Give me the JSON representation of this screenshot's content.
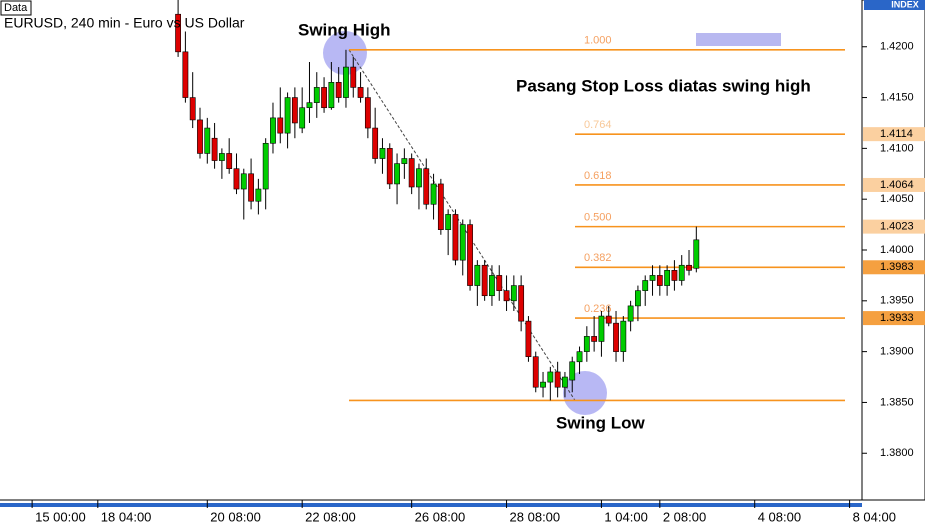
{
  "chart_data": {
    "type": "candlestick",
    "title": "EURUSD, 240 min - Euro vs US Dollar",
    "data_label": "Data",
    "axis_title": "INDEX",
    "up_color": "#00cc00",
    "down_color": "#dd0000",
    "ylim": [
      1.3754,
      1.4246
    ],
    "yticks": [
      {
        "value": 1.42,
        "label": "1.4200"
      },
      {
        "value": 1.415,
        "label": "1.4150"
      },
      {
        "value": 1.41,
        "label": "1.4100"
      },
      {
        "value": 1.405,
        "label": "1.4050"
      },
      {
        "value": 1.4,
        "label": "1.4000"
      },
      {
        "value": 1.395,
        "label": "1.3950"
      },
      {
        "value": 1.39,
        "label": "1.3900"
      },
      {
        "value": 1.385,
        "label": "1.3850"
      },
      {
        "value": 1.38,
        "label": "1.3800"
      }
    ],
    "xlim": [
      -24.4,
      93.7
    ],
    "xticks": [
      {
        "value": -20,
        "label": "15 00:00"
      },
      {
        "value": -11,
        "label": "18 04:00"
      },
      {
        "value": 4,
        "label": "20 08:00"
      },
      {
        "value": 17,
        "label": "22 08:00"
      },
      {
        "value": 32,
        "label": "26 08:00"
      },
      {
        "value": 45,
        "label": "28 08:00"
      },
      {
        "value": 58,
        "label": "1 04:00"
      },
      {
        "value": 66,
        "label": "2 08:00"
      },
      {
        "value": 79,
        "label": "4 08:00"
      },
      {
        "value": 92,
        "label": "8 04:00"
      }
    ],
    "open": [
      1.4232,
      1.4195,
      1.415,
      1.4128,
      1.4095,
      1.411,
      1.4088,
      1.4095,
      1.408,
      1.406,
      1.4075,
      1.4048,
      1.406,
      1.4105,
      1.413,
      1.4115,
      1.415,
      1.412,
      1.414,
      1.4145,
      1.416,
      1.414,
      1.4165,
      1.415,
      1.418,
      1.416,
      1.415,
      1.412,
      1.409,
      1.41,
      1.4065,
      1.4085,
      1.409,
      1.4062,
      1.408,
      1.4045,
      1.4065,
      1.402,
      1.4035,
      1.399,
      1.4025,
      1.3965,
      1.3985,
      1.3955,
      1.3975,
      1.396,
      1.395,
      1.3965,
      1.393,
      1.3895,
      1.3865,
      1.387,
      1.388,
      1.3865,
      1.3872,
      1.389,
      1.39,
      1.3915,
      1.391,
      1.3935,
      1.3928,
      1.39,
      1.393,
      1.3945,
      1.396,
      1.397,
      1.3975,
      1.3965,
      1.398,
      1.397,
      1.3985,
      1.3982
    ],
    "high": [
      1.4246,
      1.4215,
      1.4175,
      1.414,
      1.413,
      1.4125,
      1.41,
      1.411,
      1.4095,
      1.408,
      1.409,
      1.407,
      1.411,
      1.4145,
      1.416,
      1.4155,
      1.416,
      1.416,
      1.4185,
      1.4175,
      1.417,
      1.4185,
      1.418,
      1.4197,
      1.419,
      1.4175,
      1.416,
      1.414,
      1.411,
      1.4105,
      1.4095,
      1.41,
      1.4095,
      1.4085,
      1.409,
      1.4075,
      1.407,
      1.404,
      1.404,
      1.403,
      1.403,
      1.399,
      1.399,
      1.3985,
      1.3985,
      1.3975,
      1.3975,
      1.3975,
      1.3935,
      1.39,
      1.388,
      1.3885,
      1.389,
      1.388,
      1.3895,
      1.3905,
      1.3925,
      1.3935,
      1.394,
      1.3945,
      1.394,
      1.3935,
      1.395,
      1.3965,
      1.3975,
      1.3985,
      1.3985,
      1.3985,
      1.399,
      1.3995,
      1.4,
      1.4023
    ],
    "low": [
      1.419,
      1.4145,
      1.412,
      1.409,
      1.4085,
      1.408,
      1.407,
      1.4075,
      1.4055,
      1.403,
      1.404,
      1.4035,
      1.404,
      1.4095,
      1.4105,
      1.41,
      1.411,
      1.4115,
      1.4125,
      1.413,
      1.4135,
      1.4138,
      1.4145,
      1.414,
      1.415,
      1.4145,
      1.411,
      1.4085,
      1.4075,
      1.406,
      1.4045,
      1.407,
      1.4055,
      1.404,
      1.404,
      1.403,
      1.4015,
      1.3995,
      1.3985,
      1.3975,
      1.396,
      1.3945,
      1.395,
      1.3945,
      1.395,
      1.394,
      1.394,
      1.392,
      1.389,
      1.386,
      1.3855,
      1.3852,
      1.3855,
      1.3855,
      1.386,
      1.3878,
      1.389,
      1.39,
      1.3895,
      1.3925,
      1.389,
      1.389,
      1.392,
      1.393,
      1.3945,
      1.3955,
      1.3955,
      1.3955,
      1.396,
      1.3965,
      1.3975,
      1.3978
    ],
    "close": [
      1.4195,
      1.415,
      1.4128,
      1.4095,
      1.412,
      1.4088,
      1.4095,
      1.408,
      1.406,
      1.4075,
      1.4048,
      1.406,
      1.4105,
      1.413,
      1.4115,
      1.415,
      1.4125,
      1.414,
      1.4145,
      1.416,
      1.414,
      1.4165,
      1.415,
      1.418,
      1.416,
      1.415,
      1.412,
      1.409,
      1.41,
      1.4065,
      1.4085,
      1.409,
      1.4062,
      1.408,
      1.4045,
      1.4065,
      1.402,
      1.4035,
      1.399,
      1.4025,
      1.3965,
      1.3985,
      1.3955,
      1.3975,
      1.396,
      1.395,
      1.3965,
      1.393,
      1.3895,
      1.3865,
      1.387,
      1.388,
      1.3865,
      1.3875,
      1.389,
      1.39,
      1.3915,
      1.391,
      1.3935,
      1.3928,
      1.39,
      1.393,
      1.3945,
      1.396,
      1.397,
      1.3975,
      1.3965,
      1.398,
      1.397,
      1.3985,
      1.398,
      1.401
    ],
    "fib_color": "#f7931e",
    "fib_levels": [
      {
        "ratio": "1.000",
        "price": 1.4197,
        "axis_label": false
      },
      {
        "ratio": "0.764",
        "price": 1.4114,
        "axis_label": true
      },
      {
        "ratio": "0.618",
        "price": 1.4064,
        "axis_label": true
      },
      {
        "ratio": "0.500",
        "price": 1.4023,
        "axis_label": true
      },
      {
        "ratio": "0.382",
        "price": 1.3983,
        "axis_label": true
      },
      {
        "ratio": "0.236",
        "price": 1.3933,
        "axis_label": true
      },
      {
        "price": 1.3852,
        "axis_label": false
      }
    ],
    "annotations": {
      "swing_high": "Swing High",
      "swing_low": "Swing Low",
      "note": "Pasang Stop Loss diatas swing high"
    }
  }
}
